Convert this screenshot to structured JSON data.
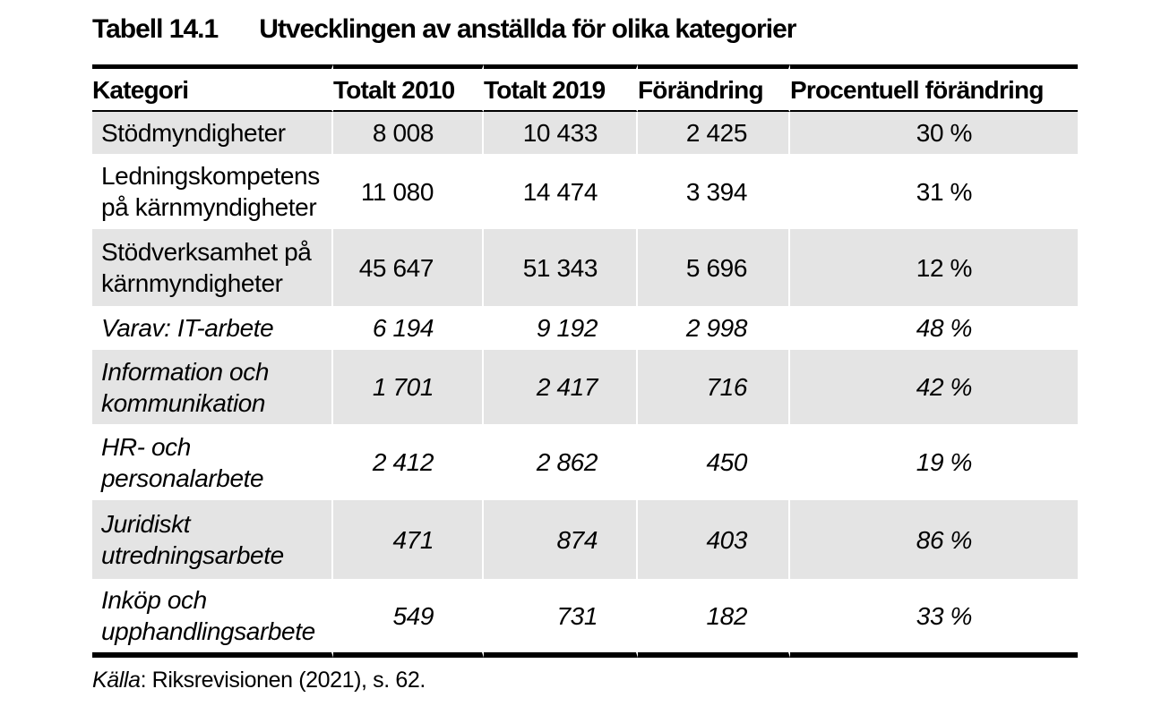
{
  "title": {
    "number": "Tabell 14.1",
    "text": "Utvecklingen av anställda för olika kategorier"
  },
  "table": {
    "header": {
      "kategori": "Kategori",
      "totalt2010": "Totalt 2010",
      "totalt2019": "Totalt 2019",
      "forandring": "Förändring",
      "procent": "Procentuell förändring"
    },
    "rows": [
      {
        "kategori": "Stödmyndigheter",
        "totalt2010": "8 008",
        "totalt2019": "10 433",
        "forandring": "2 425",
        "procent": "30 %",
        "style": "regular"
      },
      {
        "kategori": "Ledningskompetens på kärnmyndigheter",
        "totalt2010": "11 080",
        "totalt2019": "14 474",
        "forandring": "3 394",
        "procent": "31 %",
        "style": "regular"
      },
      {
        "kategori": "Stödverksamhet på kärnmyndigheter",
        "totalt2010": "45 647",
        "totalt2019": "51 343",
        "forandring": "5 696",
        "procent": "12 %",
        "style": "regular"
      },
      {
        "kategori": "Varav: IT-arbete",
        "totalt2010": "6 194",
        "totalt2019": "9 192",
        "forandring": "2 998",
        "procent": "48 %",
        "style": "italic"
      },
      {
        "kategori": "Information och kommunikation",
        "totalt2010": "1 701",
        "totalt2019": "2 417",
        "forandring": "716",
        "procent": "42 %",
        "style": "italic"
      },
      {
        "kategori": "HR- och personalarbete",
        "totalt2010": "2 412",
        "totalt2019": "2 862",
        "forandring": "450",
        "procent": "19 %",
        "style": "italic"
      },
      {
        "kategori": "Juridiskt utredningsarbete",
        "totalt2010": "471",
        "totalt2019": "874",
        "forandring": "403",
        "procent": "86 %",
        "style": "italic"
      },
      {
        "kategori": "Inköp och upphandlingsarbete",
        "totalt2010": "549",
        "totalt2019": "731",
        "forandring": "182",
        "procent": "33 %",
        "style": "italic"
      }
    ]
  },
  "source": {
    "label": "Källa",
    "text": ": Riksrevisionen (2021), s. 62."
  },
  "colors": {
    "row_shading": "#e4e4e4",
    "text": "#000000",
    "rule": "#000000",
    "background": "#ffffff"
  }
}
